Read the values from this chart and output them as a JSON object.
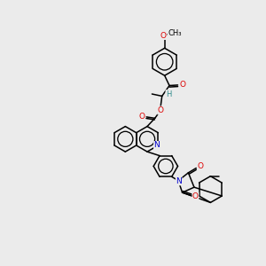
{
  "background_color": "#ebebeb",
  "figsize": [
    3.0,
    3.0
  ],
  "dpi": 100,
  "bond_color": "#000000",
  "bond_lw": 1.1,
  "atom_colors": {
    "O": "#dd0000",
    "N": "#0000cc",
    "H": "#2e8b8b",
    "C": "#000000"
  },
  "font_size": 6.5,
  "xlim": [
    0,
    10
  ],
  "ylim": [
    0,
    10
  ]
}
